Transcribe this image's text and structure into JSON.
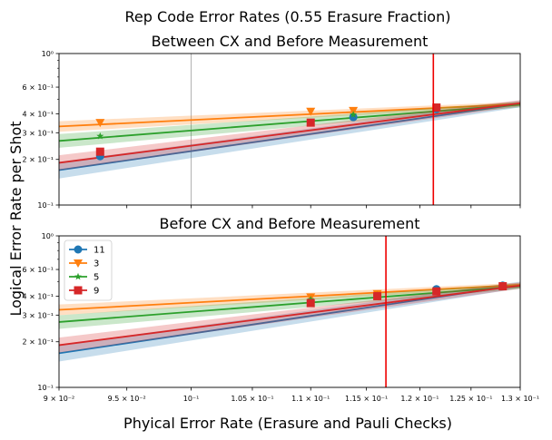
{
  "figure": {
    "suptitle": "Rep Code Error Rates (0.55 Erasure Fraction)",
    "xlabel": "Phyical Error Rate (Erasure and Pauli Checks)",
    "ylabel": "Logical Error Rate per Shot"
  },
  "chart_data": [
    {
      "type": "line",
      "title": "Between CX and Before Measurement",
      "xscale": "log",
      "yscale": "log",
      "xlim": [
        0.09,
        0.13
      ],
      "ylim": [
        0.1,
        1.0
      ],
      "x_ticks": [
        {
          "value": 0.09,
          "label": "9 × 10⁻²"
        },
        {
          "value": 0.095,
          "label": "9.5 × 10⁻²"
        },
        {
          "value": 0.1,
          "label": "10⁻¹"
        },
        {
          "value": 0.105,
          "label": "1.05 × 10⁻¹"
        },
        {
          "value": 0.11,
          "label": "1.1 × 10⁻¹"
        },
        {
          "value": 0.115,
          "label": "1.15 × 10⁻¹"
        },
        {
          "value": 0.12,
          "label": "1.2 × 10⁻¹"
        },
        {
          "value": 0.125,
          "label": "1.25 × 10⁻¹"
        },
        {
          "value": 0.13,
          "label": "1.3 × 10⁻¹"
        }
      ],
      "x_tick_labels_visible": false,
      "y_ticks": [
        {
          "value": 0.1,
          "label": "10⁻¹"
        },
        {
          "value": 0.2,
          "label": "2 × 10⁻¹"
        },
        {
          "value": 0.3,
          "label": "3 × 10⁻¹"
        },
        {
          "value": 0.4,
          "label": "4 × 10⁻¹"
        },
        {
          "value": 0.6,
          "label": "6 × 10⁻¹"
        },
        {
          "value": 1.0,
          "label": "10⁰"
        }
      ],
      "gray_vline_x": 0.1,
      "threshold_x": 0.1213,
      "series": [
        {
          "color": "#1f77b4",
          "marker": "circle",
          "x": [
            0.093,
            0.1138,
            0.1216
          ],
          "y": [
            0.21,
            0.38,
            0.43
          ],
          "line_x": [
            0.09,
            0.13
          ],
          "line_y": [
            0.17,
            0.465
          ],
          "band": 0.055
        },
        {
          "color": "#ff7f0e",
          "marker": "triangle-down",
          "x": [
            0.093,
            0.11,
            0.1138
          ],
          "y": [
            0.35,
            0.415,
            0.42
          ],
          "line_x": [
            0.09,
            0.13
          ],
          "line_y": [
            0.33,
            0.465
          ],
          "band": 0.035
        },
        {
          "color": "#2ca02c",
          "marker": "star",
          "x": [
            0.093,
            0.1138
          ],
          "y": [
            0.285,
            0.395
          ],
          "line_x": [
            0.09,
            0.13
          ],
          "line_y": [
            0.265,
            0.46
          ],
          "band": 0.045
        },
        {
          "color": "#d62728",
          "marker": "square",
          "x": [
            0.093,
            0.11,
            0.1216
          ],
          "y": [
            0.225,
            0.35,
            0.44
          ],
          "line_x": [
            0.09,
            0.13
          ],
          "line_y": [
            0.19,
            0.47
          ],
          "band": 0.05
        }
      ]
    },
    {
      "type": "line",
      "title": "Before CX and Before Measurement",
      "xscale": "log",
      "yscale": "log",
      "xlim": [
        0.09,
        0.13
      ],
      "ylim": [
        0.1,
        1.0
      ],
      "x_ticks": [
        {
          "value": 0.09,
          "label": "9 × 10⁻²"
        },
        {
          "value": 0.095,
          "label": "9.5 × 10⁻²"
        },
        {
          "value": 0.1,
          "label": "10⁻¹"
        },
        {
          "value": 0.105,
          "label": "1.05 × 10⁻¹"
        },
        {
          "value": 0.11,
          "label": "1.1 × 10⁻¹"
        },
        {
          "value": 0.115,
          "label": "1.15 × 10⁻¹"
        },
        {
          "value": 0.12,
          "label": "1.2 × 10⁻¹"
        },
        {
          "value": 0.125,
          "label": "1.25 × 10⁻¹"
        },
        {
          "value": 0.13,
          "label": "1.3 × 10⁻¹"
        }
      ],
      "x_tick_labels_visible": true,
      "y_ticks": [
        {
          "value": 0.1,
          "label": "10⁻¹"
        },
        {
          "value": 0.2,
          "label": "2 × 10⁻¹"
        },
        {
          "value": 0.3,
          "label": "3 × 10⁻¹"
        },
        {
          "value": 0.4,
          "label": "4 × 10⁻¹"
        },
        {
          "value": 0.6,
          "label": "6 × 10⁻¹"
        },
        {
          "value": 1.0,
          "label": "10⁰"
        }
      ],
      "gray_vline_x": null,
      "threshold_x": 0.1168,
      "legend": {
        "placement": "upper-left",
        "entries": [
          "11",
          "3",
          "5",
          "9"
        ]
      },
      "series": [
        {
          "name": "11",
          "color": "#1f77b4",
          "marker": "circle",
          "x": [
            0.116,
            0.1216,
            0.1282
          ],
          "y": [
            0.405,
            0.445,
            0.47
          ],
          "line_x": [
            0.09,
            0.13
          ],
          "line_y": [
            0.168,
            0.475
          ],
          "band": 0.055
        },
        {
          "name": "3",
          "color": "#ff7f0e",
          "marker": "triangle-down",
          "x": [
            0.11,
            0.116
          ],
          "y": [
            0.395,
            0.415
          ],
          "line_x": [
            0.09,
            0.13
          ],
          "line_y": [
            0.325,
            0.475
          ],
          "band": 0.035
        },
        {
          "name": "5",
          "color": "#2ca02c",
          "marker": "star",
          "x": [
            0.11,
            0.116
          ],
          "y": [
            0.38,
            0.405
          ],
          "line_x": [
            0.09,
            0.13
          ],
          "line_y": [
            0.27,
            0.465
          ],
          "band": 0.045
        },
        {
          "name": "9",
          "color": "#d62728",
          "marker": "square",
          "x": [
            0.11,
            0.116,
            0.1216,
            0.1282
          ],
          "y": [
            0.36,
            0.4,
            0.43,
            0.465
          ],
          "line_x": [
            0.09,
            0.13
          ],
          "line_y": [
            0.19,
            0.47
          ],
          "band": 0.05
        }
      ]
    }
  ]
}
